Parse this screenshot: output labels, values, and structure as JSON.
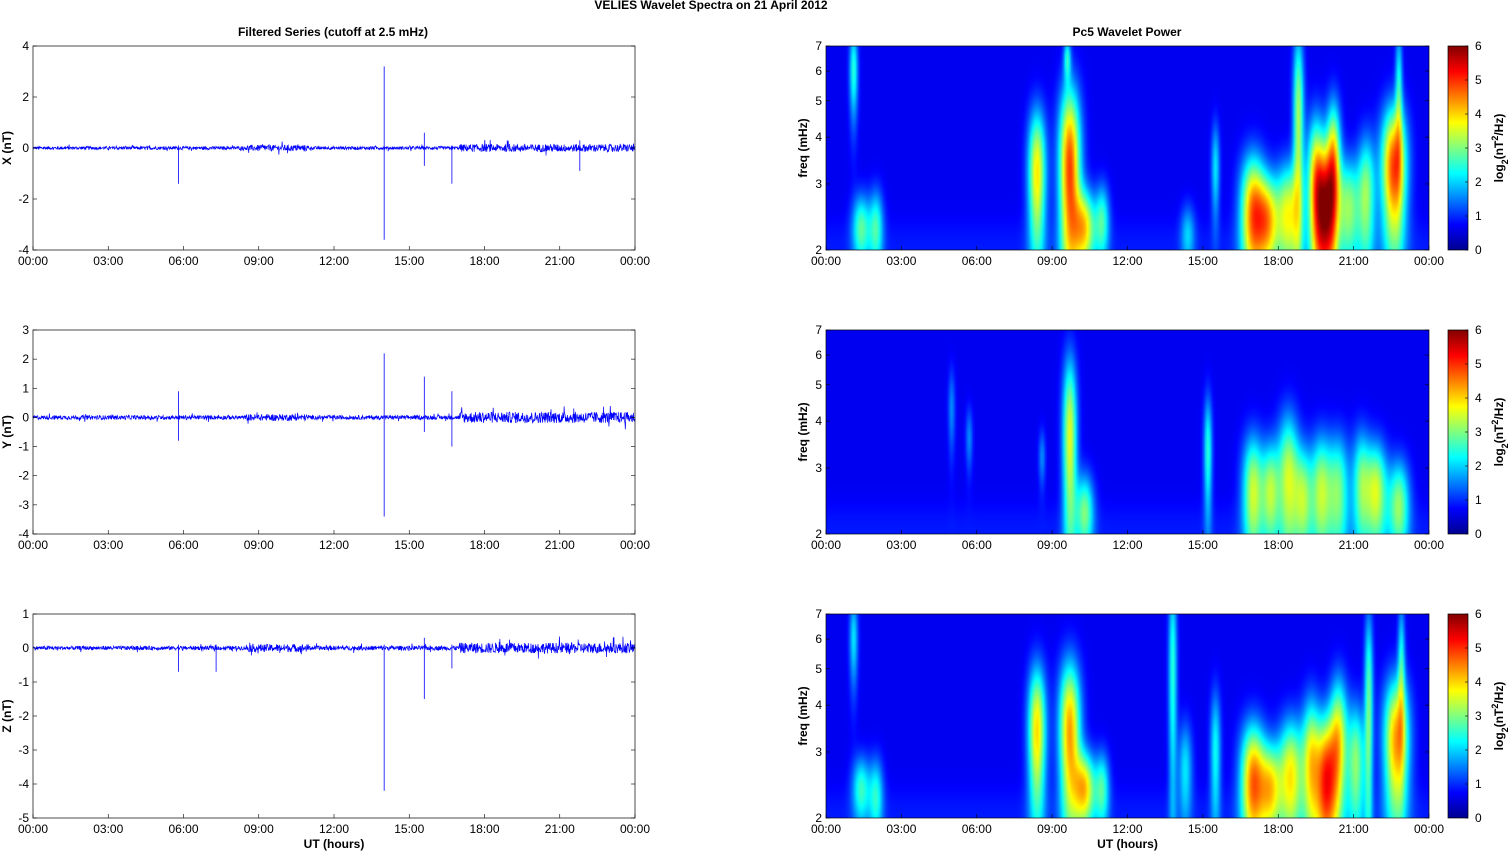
{
  "figure": {
    "title": "VELIES Wavelet Spectra on 21 April     2012",
    "left_title": "Filtered Series (cutoff at 2.5 mHz)",
    "right_title": "Pc5 Wavelet Power",
    "xlabel": "UT (hours)",
    "time_ticks": [
      "00:00",
      "03:00",
      "06:00",
      "09:00",
      "12:00",
      "15:00",
      "18:00",
      "21:00",
      "00:00"
    ],
    "freq_label": "freq (mHz)",
    "colorbar_label": "log2(nT^2/Hz)",
    "colorbar_ticks": [
      0,
      1,
      2,
      3,
      4,
      5,
      6
    ],
    "freq_ticks": [
      2,
      3,
      4,
      5,
      6,
      7
    ]
  },
  "chart_data": [
    {
      "type": "line",
      "name": "x-series",
      "ylabel": "X (nT)",
      "ylim": [
        -4,
        4
      ],
      "yticks": [
        -4,
        -2,
        0,
        2,
        4
      ],
      "xlim_hours": [
        0,
        24
      ],
      "color": "#0000ff",
      "noise_amplitude": 0.08,
      "noise_envelope_hours": [
        [
          0,
          8.5,
          0.8
        ],
        [
          8.5,
          11,
          1.5
        ],
        [
          11,
          17,
          0.8
        ],
        [
          17,
          24,
          1.9
        ]
      ],
      "spikes": [
        {
          "t": 5.8,
          "lo": -1.4,
          "hi": 0.1
        },
        {
          "t": 14.0,
          "lo": -3.6,
          "hi": 3.2
        },
        {
          "t": 15.6,
          "lo": -0.7,
          "hi": 0.6
        },
        {
          "t": 16.7,
          "lo": -1.4,
          "hi": 0.1
        },
        {
          "t": 21.8,
          "lo": -0.9,
          "hi": 0.3
        }
      ]
    },
    {
      "type": "line",
      "name": "y-series",
      "ylabel": "Y (nT)",
      "ylim": [
        -4,
        3
      ],
      "yticks": [
        -4,
        -3,
        -2,
        -1,
        0,
        1,
        2,
        3
      ],
      "xlim_hours": [
        0,
        24
      ],
      "color": "#0000ff",
      "noise_amplitude": 0.08,
      "noise_envelope_hours": [
        [
          0,
          8.5,
          0.9
        ],
        [
          8.5,
          11,
          1.4
        ],
        [
          11,
          17,
          0.9
        ],
        [
          17,
          24,
          2.4
        ]
      ],
      "spikes": [
        {
          "t": 5.8,
          "lo": -0.8,
          "hi": 0.9
        },
        {
          "t": 14.0,
          "lo": -3.4,
          "hi": 2.2
        },
        {
          "t": 15.6,
          "lo": -0.5,
          "hi": 1.4
        },
        {
          "t": 16.7,
          "lo": -1.0,
          "hi": 0.9
        }
      ]
    },
    {
      "type": "line",
      "name": "z-series",
      "ylabel": "Z (nT)",
      "ylim": [
        -5,
        1
      ],
      "yticks": [
        -5,
        -4,
        -3,
        -2,
        -1,
        0,
        1
      ],
      "xlim_hours": [
        0,
        24
      ],
      "color": "#0000ff",
      "noise_amplitude": 0.06,
      "noise_envelope_hours": [
        [
          0,
          8.5,
          1.0
        ],
        [
          8.5,
          11,
          1.9
        ],
        [
          11,
          17,
          1.1
        ],
        [
          17,
          24,
          2.6
        ]
      ],
      "spikes": [
        {
          "t": 5.8,
          "lo": -0.7,
          "hi": 0.1
        },
        {
          "t": 7.3,
          "lo": -0.7,
          "hi": 0.1
        },
        {
          "t": 14.0,
          "lo": -4.2,
          "hi": 0.1
        },
        {
          "t": 15.6,
          "lo": -1.5,
          "hi": 0.3
        },
        {
          "t": 16.7,
          "lo": -0.6,
          "hi": 0.1
        }
      ]
    },
    {
      "type": "heatmap",
      "name": "x-power",
      "ylabel": "freq (mHz)",
      "ylim": [
        2,
        7
      ],
      "yscale": "log",
      "xlim_hours": [
        0,
        24
      ],
      "clim": [
        0,
        6
      ],
      "colormap": "jet",
      "blobs": [
        {
          "t": 1.1,
          "f": 6.0,
          "w": 0.12,
          "h": 1.2,
          "v": 2.0
        },
        {
          "t": 1.4,
          "f": 2.3,
          "w": 0.25,
          "h": 0.35,
          "v": 2.2
        },
        {
          "t": 2.0,
          "f": 2.3,
          "w": 0.2,
          "h": 0.4,
          "v": 2.0
        },
        {
          "t": 8.4,
          "f": 3.2,
          "w": 0.25,
          "h": 1.0,
          "v": 3.5
        },
        {
          "t": 9.7,
          "f": 3.3,
          "w": 0.3,
          "h": 1.4,
          "v": 4.6
        },
        {
          "t": 9.6,
          "f": 6.5,
          "w": 0.1,
          "h": 0.6,
          "v": 1.8
        },
        {
          "t": 10.3,
          "f": 2.3,
          "w": 0.3,
          "h": 0.4,
          "v": 3.2
        },
        {
          "t": 11.0,
          "f": 2.4,
          "w": 0.2,
          "h": 0.4,
          "v": 2.0
        },
        {
          "t": 14.4,
          "f": 2.2,
          "w": 0.2,
          "h": 0.3,
          "v": 1.3
        },
        {
          "t": 15.5,
          "f": 3.3,
          "w": 0.12,
          "h": 0.7,
          "v": 1.6
        },
        {
          "t": 17.0,
          "f": 2.5,
          "w": 0.35,
          "h": 0.7,
          "v": 4.2
        },
        {
          "t": 17.6,
          "f": 2.4,
          "w": 0.3,
          "h": 0.5,
          "v": 3.0
        },
        {
          "t": 18.4,
          "f": 2.5,
          "w": 0.35,
          "h": 0.6,
          "v": 3.2
        },
        {
          "t": 18.8,
          "f": 4.5,
          "w": 0.15,
          "h": 2.0,
          "v": 2.8
        },
        {
          "t": 19.5,
          "f": 3.0,
          "w": 0.25,
          "h": 1.0,
          "v": 3.4
        },
        {
          "t": 19.9,
          "f": 2.5,
          "w": 0.3,
          "h": 0.8,
          "v": 4.5
        },
        {
          "t": 20.2,
          "f": 3.5,
          "w": 0.2,
          "h": 1.0,
          "v": 3.2
        },
        {
          "t": 20.8,
          "f": 2.6,
          "w": 0.3,
          "h": 0.6,
          "v": 2.6
        },
        {
          "t": 21.5,
          "f": 2.8,
          "w": 0.25,
          "h": 0.8,
          "v": 2.6
        },
        {
          "t": 22.6,
          "f": 3.3,
          "w": 0.35,
          "h": 1.0,
          "v": 4.6
        },
        {
          "t": 22.8,
          "f": 5.5,
          "w": 0.1,
          "h": 1.5,
          "v": 1.8
        }
      ]
    },
    {
      "type": "heatmap",
      "name": "y-power",
      "ylabel": "freq (mHz)",
      "ylim": [
        2,
        7
      ],
      "yscale": "log",
      "xlim_hours": [
        0,
        24
      ],
      "clim": [
        0,
        6
      ],
      "colormap": "jet",
      "blobs": [
        {
          "t": 5.0,
          "f": 4.3,
          "w": 0.1,
          "h": 0.8,
          "v": 1.0
        },
        {
          "t": 5.7,
          "f": 3.6,
          "w": 0.1,
          "h": 0.5,
          "v": 1.0
        },
        {
          "t": 8.6,
          "f": 3.2,
          "w": 0.1,
          "h": 0.4,
          "v": 1.0
        },
        {
          "t": 9.7,
          "f": 3.6,
          "w": 0.2,
          "h": 1.5,
          "v": 3.2
        },
        {
          "t": 10.3,
          "f": 2.3,
          "w": 0.25,
          "h": 0.4,
          "v": 2.4
        },
        {
          "t": 15.2,
          "f": 3.3,
          "w": 0.12,
          "h": 0.9,
          "v": 2.0
        },
        {
          "t": 17.0,
          "f": 2.6,
          "w": 0.3,
          "h": 0.7,
          "v": 3.0
        },
        {
          "t": 17.7,
          "f": 2.6,
          "w": 0.25,
          "h": 0.6,
          "v": 2.6
        },
        {
          "t": 18.4,
          "f": 2.8,
          "w": 0.3,
          "h": 0.9,
          "v": 3.0
        },
        {
          "t": 19.0,
          "f": 2.5,
          "w": 0.25,
          "h": 0.6,
          "v": 2.4
        },
        {
          "t": 19.7,
          "f": 2.6,
          "w": 0.3,
          "h": 0.7,
          "v": 2.8
        },
        {
          "t": 20.4,
          "f": 2.6,
          "w": 0.3,
          "h": 0.7,
          "v": 2.4
        },
        {
          "t": 21.3,
          "f": 2.7,
          "w": 0.25,
          "h": 0.7,
          "v": 2.3
        },
        {
          "t": 21.9,
          "f": 2.6,
          "w": 0.3,
          "h": 0.6,
          "v": 3.0
        },
        {
          "t": 22.8,
          "f": 2.4,
          "w": 0.3,
          "h": 0.5,
          "v": 2.6
        }
      ]
    },
    {
      "type": "heatmap",
      "name": "z-power",
      "ylabel": "freq (mHz)",
      "ylim": [
        2,
        7
      ],
      "yscale": "log",
      "xlim_hours": [
        0,
        24
      ],
      "clim": [
        0,
        6
      ],
      "colormap": "jet",
      "blobs": [
        {
          "t": 1.1,
          "f": 6.0,
          "w": 0.12,
          "h": 1.2,
          "v": 1.6
        },
        {
          "t": 1.4,
          "f": 2.4,
          "w": 0.25,
          "h": 0.35,
          "v": 2.0
        },
        {
          "t": 2.0,
          "f": 2.3,
          "w": 0.2,
          "h": 0.4,
          "v": 1.8
        },
        {
          "t": 8.4,
          "f": 3.4,
          "w": 0.25,
          "h": 1.1,
          "v": 3.6
        },
        {
          "t": 9.7,
          "f": 3.4,
          "w": 0.3,
          "h": 1.2,
          "v": 4.0
        },
        {
          "t": 10.3,
          "f": 2.4,
          "w": 0.3,
          "h": 0.4,
          "v": 3.4
        },
        {
          "t": 11.0,
          "f": 2.4,
          "w": 0.2,
          "h": 0.4,
          "v": 2.0
        },
        {
          "t": 13.8,
          "f": 5.0,
          "w": 0.12,
          "h": 2.5,
          "v": 2.0
        },
        {
          "t": 14.3,
          "f": 2.7,
          "w": 0.2,
          "h": 0.6,
          "v": 1.6
        },
        {
          "t": 15.5,
          "f": 3.0,
          "w": 0.15,
          "h": 0.9,
          "v": 1.8
        },
        {
          "t": 17.0,
          "f": 2.5,
          "w": 0.35,
          "h": 0.7,
          "v": 4.2
        },
        {
          "t": 17.7,
          "f": 2.4,
          "w": 0.3,
          "h": 0.5,
          "v": 3.0
        },
        {
          "t": 18.5,
          "f": 2.6,
          "w": 0.35,
          "h": 0.7,
          "v": 3.4
        },
        {
          "t": 19.3,
          "f": 2.8,
          "w": 0.25,
          "h": 0.9,
          "v": 3.0
        },
        {
          "t": 19.9,
          "f": 2.5,
          "w": 0.3,
          "h": 0.8,
          "v": 4.5
        },
        {
          "t": 20.4,
          "f": 3.2,
          "w": 0.25,
          "h": 1.0,
          "v": 3.2
        },
        {
          "t": 21.1,
          "f": 2.8,
          "w": 0.25,
          "h": 0.8,
          "v": 2.6
        },
        {
          "t": 21.6,
          "f": 4.0,
          "w": 0.12,
          "h": 2.0,
          "v": 2.4
        },
        {
          "t": 22.7,
          "f": 3.2,
          "w": 0.35,
          "h": 1.0,
          "v": 4.0
        },
        {
          "t": 22.9,
          "f": 5.2,
          "w": 0.1,
          "h": 1.5,
          "v": 1.8
        }
      ]
    }
  ]
}
